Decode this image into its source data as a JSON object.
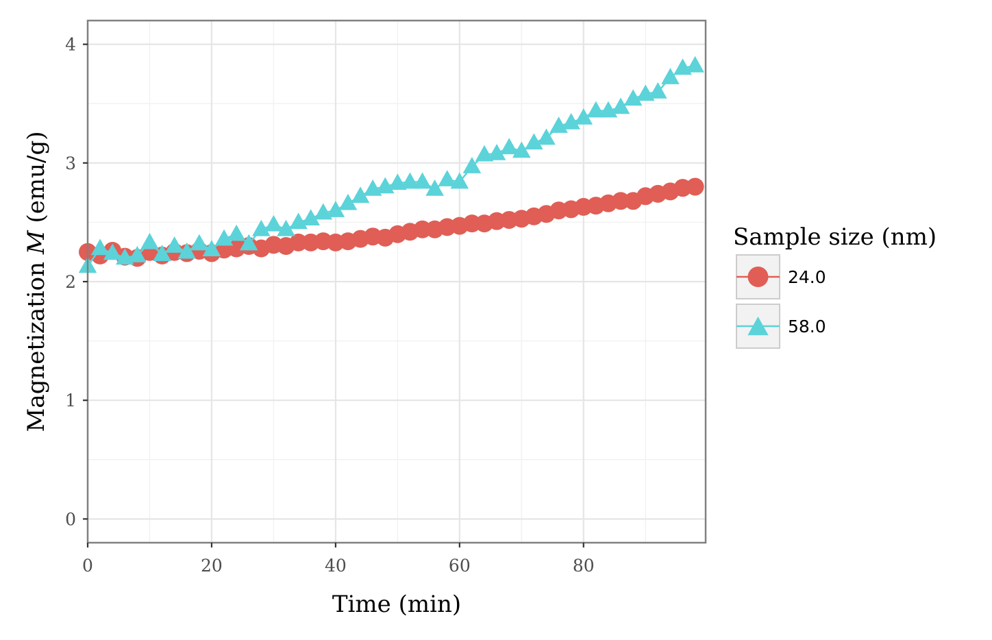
{
  "chart_data": {
    "type": "line",
    "title": "",
    "xlabel": "Time (min)",
    "ylabel": "Magnetization M (emu/g)",
    "ylabel_parts": [
      "Magnetization ",
      "M",
      " (emu/g)"
    ],
    "xlim": [
      0,
      99.7
    ],
    "ylim": [
      -0.2,
      4.2
    ],
    "xticks": [
      0,
      20,
      40,
      60,
      80
    ],
    "yticks": [
      0,
      1,
      2,
      3,
      4
    ],
    "grid": true,
    "legend_title": "Sample size (nm)",
    "legend_position": "right",
    "x": [
      0,
      2,
      4,
      6,
      8,
      10,
      12,
      14,
      16,
      18,
      20,
      22,
      24,
      26,
      28,
      30,
      32,
      34,
      36,
      38,
      40,
      42,
      44,
      46,
      48,
      50,
      52,
      54,
      56,
      58,
      60,
      62,
      64,
      66,
      68,
      70,
      72,
      74,
      76,
      78,
      80,
      82,
      84,
      86,
      88,
      90,
      92,
      94,
      96,
      98
    ],
    "series": [
      {
        "name": "24.0",
        "color": "#e05e55",
        "marker": "circle",
        "values": [
          2.25,
          2.22,
          2.26,
          2.21,
          2.2,
          2.25,
          2.22,
          2.25,
          2.24,
          2.26,
          2.24,
          2.27,
          2.28,
          2.3,
          2.28,
          2.31,
          2.3,
          2.33,
          2.33,
          2.34,
          2.33,
          2.34,
          2.36,
          2.38,
          2.37,
          2.4,
          2.42,
          2.44,
          2.44,
          2.46,
          2.47,
          2.49,
          2.49,
          2.51,
          2.52,
          2.53,
          2.55,
          2.57,
          2.6,
          2.61,
          2.63,
          2.64,
          2.66,
          2.68,
          2.68,
          2.72,
          2.74,
          2.76,
          2.79,
          2.8
        ]
      },
      {
        "name": "58.0",
        "color": "#5bd3d9",
        "marker": "triangle",
        "values": [
          2.13,
          2.28,
          2.24,
          2.2,
          2.22,
          2.33,
          2.23,
          2.3,
          2.25,
          2.32,
          2.27,
          2.36,
          2.4,
          2.32,
          2.44,
          2.48,
          2.44,
          2.5,
          2.53,
          2.58,
          2.6,
          2.66,
          2.72,
          2.78,
          2.8,
          2.83,
          2.84,
          2.84,
          2.78,
          2.86,
          2.84,
          2.97,
          3.07,
          3.08,
          3.13,
          3.1,
          3.17,
          3.21,
          3.31,
          3.34,
          3.38,
          3.44,
          3.44,
          3.47,
          3.54,
          3.58,
          3.6,
          3.72,
          3.8,
          3.82
        ]
      }
    ]
  }
}
